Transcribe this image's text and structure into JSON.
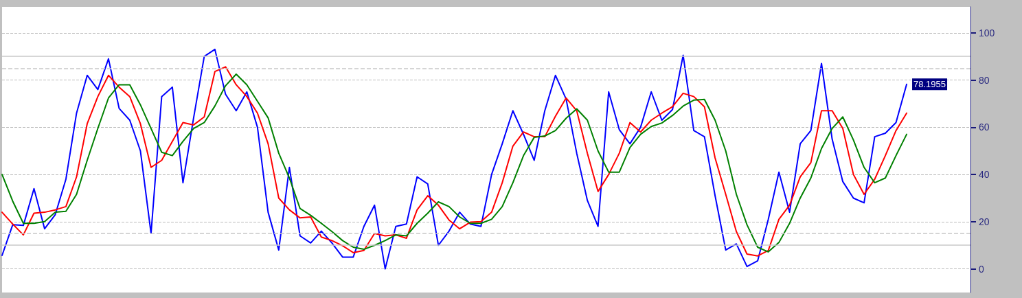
{
  "chart_data": {
    "type": "line",
    "categories": [
      null,
      null,
      null,
      null,
      null,
      null,
      null,
      null,
      null,
      null,
      null,
      null,
      null,
      null,
      null,
      null,
      null,
      null,
      null,
      null,
      null,
      null,
      null,
      null,
      null,
      null,
      null,
      null,
      null,
      null,
      null,
      null,
      null,
      null,
      null,
      null,
      null,
      null,
      null,
      null,
      null,
      null,
      null,
      null,
      null,
      null,
      null,
      null,
      null,
      null,
      null,
      null,
      null,
      null,
      null,
      null,
      null,
      null,
      null,
      null,
      null,
      null,
      null,
      null,
      null,
      null,
      null,
      null,
      null,
      null,
      null,
      null,
      null,
      null,
      null,
      null,
      null,
      null,
      null,
      null,
      null,
      null,
      null,
      null,
      null,
      null,
      null,
      null,
      null,
      null,
      null,
      null
    ],
    "series": [
      {
        "color": "#0000ff",
        "values": [
          5.7,
          18.7,
          18.4,
          34,
          17,
          23,
          38,
          66,
          82,
          76,
          89,
          68,
          63,
          50,
          15,
          73,
          77,
          36.5,
          64,
          90,
          93,
          74,
          67,
          75,
          60,
          24,
          8,
          43,
          14,
          11,
          16,
          11,
          5,
          5,
          18,
          27,
          0,
          18,
          19,
          39,
          36,
          10,
          16,
          24,
          19,
          18,
          40,
          53,
          67,
          57,
          46,
          67,
          82,
          72,
          49,
          29,
          18,
          75,
          59,
          53,
          60,
          75,
          63,
          67.5,
          90.5,
          58.6,
          56,
          31,
          8,
          10.6,
          1,
          3.4,
          21,
          41,
          24,
          53,
          58.6,
          87,
          55,
          37,
          30,
          28,
          56,
          57.5,
          62,
          78.1955,
          null,
          null,
          null,
          null,
          null,
          null
        ],
        "value_labels": [
          null,
          null,
          null,
          null,
          null,
          null,
          null,
          null,
          null,
          null,
          null,
          null,
          null,
          null,
          null,
          null,
          null,
          null,
          null,
          null,
          null,
          null,
          null,
          null,
          null,
          null,
          null,
          null,
          null,
          null,
          null,
          null,
          null,
          null,
          null,
          null,
          null,
          null,
          null,
          null,
          null,
          null,
          null,
          null,
          null,
          null,
          null,
          null,
          null,
          null,
          null,
          null,
          null,
          null,
          null,
          null,
          null,
          null,
          null,
          null,
          null,
          null,
          null,
          null,
          null,
          null,
          null,
          null,
          null,
          null,
          null,
          null,
          null,
          null,
          null,
          null,
          null,
          null,
          null,
          null,
          null,
          null,
          null,
          null,
          null,
          "78.1955",
          null,
          null,
          null,
          null,
          null,
          null
        ]
      },
      {
        "color": "#ff0000",
        "values": [
          24,
          19,
          14.4,
          23.6,
          24,
          25,
          26.4,
          39,
          61.5,
          73,
          82,
          77,
          73,
          61.5,
          43,
          46,
          54,
          62,
          61,
          64.4,
          83.6,
          85.6,
          78,
          73,
          66,
          53,
          30,
          25,
          21.6,
          22,
          13.5,
          12,
          9.8,
          6.9,
          7.8,
          15,
          14,
          14.4,
          13,
          25,
          31,
          27,
          20.7,
          17,
          19.8,
          20,
          24,
          36.5,
          52,
          58,
          56,
          56,
          64.7,
          72.4,
          67,
          49,
          32.8,
          40,
          49,
          62,
          58,
          63,
          66,
          68.7,
          74.4,
          73,
          68.7,
          47,
          31.6,
          15.8,
          6.3,
          5.5,
          7.8,
          21,
          27,
          39,
          45,
          67,
          67,
          59.5,
          40,
          31.6,
          38,
          48,
          58.6,
          66,
          null,
          null,
          null,
          null,
          null,
          null
        ]
      },
      {
        "color": "#008000",
        "values": [
          40,
          28.7,
          19.3,
          19.3,
          20,
          24,
          24.4,
          31.6,
          46,
          59.5,
          72.4,
          78,
          78,
          69.5,
          59.5,
          49.4,
          48,
          54,
          59.5,
          62,
          69,
          77.6,
          82.5,
          78,
          71,
          64,
          49,
          38.5,
          25.6,
          22.7,
          19.3,
          15.8,
          12,
          9.2,
          8.3,
          10,
          12,
          14.4,
          14,
          19.3,
          23.6,
          28.4,
          26.4,
          22,
          19.3,
          19.3,
          21,
          26.4,
          36.5,
          48,
          55.7,
          56.3,
          58.6,
          63.8,
          67.8,
          63,
          50,
          41,
          41,
          51.4,
          57,
          60.3,
          61.8,
          65,
          69,
          71.5,
          71.8,
          63,
          50,
          31.6,
          18.7,
          9.2,
          7.2,
          11.2,
          19.3,
          30,
          38.5,
          51,
          59.5,
          64.4,
          54.6,
          43,
          36.5,
          38.5,
          48,
          57,
          null,
          null,
          null,
          null,
          null,
          null
        ]
      }
    ],
    "ylim": [
      -10,
      111
    ],
    "yticks": [
      0,
      20,
      40,
      60,
      80,
      100
    ],
    "grid": "y",
    "marker": "none",
    "line_style": "solid",
    "ref_lines": [
      {
        "axis": "y",
        "value": 90,
        "color": "#c8c8c8",
        "line_style": "solid"
      },
      {
        "axis": "y",
        "value": 85,
        "color": "#c8c8c8",
        "line_style": "dashed"
      },
      {
        "axis": "y",
        "value": 15,
        "color": "#c8c8c8",
        "line_style": "dashed"
      },
      {
        "axis": "y",
        "value": 10,
        "color": "#c8c8c8",
        "line_style": "solid"
      }
    ]
  }
}
